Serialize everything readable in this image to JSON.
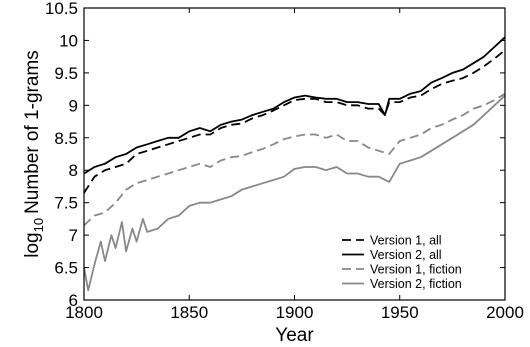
{
  "chart_data": {
    "type": "line",
    "title": "",
    "xlabel": "Year",
    "ylabel": "Number of 1-grams",
    "ylabel_prefix": "log",
    "ylabel_subscript": "10",
    "xlim": [
      1800,
      2000
    ],
    "ylim": [
      6,
      10.5
    ],
    "xticks": [
      "1800",
      "1850",
      "1900",
      "1950",
      "2000"
    ],
    "yticks": [
      "6",
      "6.5",
      "7",
      "7.5",
      "8",
      "8.5",
      "9",
      "9.5",
      "10",
      "10.5"
    ],
    "grid": false,
    "legend_position": "bottom-right",
    "series": [
      {
        "name": "Version 1, all",
        "color": "#000000",
        "dash": "dashed",
        "x": [
          1800,
          1805,
          1810,
          1815,
          1820,
          1825,
          1830,
          1835,
          1840,
          1845,
          1850,
          1855,
          1860,
          1865,
          1870,
          1875,
          1880,
          1885,
          1890,
          1895,
          1900,
          1905,
          1910,
          1915,
          1920,
          1925,
          1930,
          1935,
          1940,
          1943,
          1945,
          1950,
          1955,
          1960,
          1965,
          1970,
          1975,
          1980,
          1985,
          1990,
          1995,
          2000
        ],
        "y": [
          7.65,
          7.9,
          8.0,
          8.05,
          8.1,
          8.25,
          8.3,
          8.35,
          8.4,
          8.45,
          8.5,
          8.55,
          8.55,
          8.65,
          8.7,
          8.72,
          8.8,
          8.85,
          8.92,
          9.0,
          9.08,
          9.1,
          9.1,
          9.05,
          9.05,
          9.0,
          9.0,
          8.95,
          8.95,
          8.85,
          9.05,
          9.05,
          9.12,
          9.15,
          9.25,
          9.33,
          9.38,
          9.42,
          9.5,
          9.6,
          9.72,
          9.85
        ]
      },
      {
        "name": "Version 2, all",
        "color": "#000000",
        "dash": "solid",
        "x": [
          1800,
          1805,
          1810,
          1815,
          1820,
          1825,
          1830,
          1835,
          1840,
          1845,
          1850,
          1855,
          1860,
          1865,
          1870,
          1875,
          1880,
          1885,
          1890,
          1895,
          1900,
          1905,
          1910,
          1915,
          1920,
          1925,
          1930,
          1935,
          1940,
          1943,
          1945,
          1950,
          1955,
          1960,
          1965,
          1970,
          1975,
          1980,
          1985,
          1990,
          1995,
          2000
        ],
        "y": [
          7.95,
          8.05,
          8.1,
          8.2,
          8.25,
          8.35,
          8.4,
          8.45,
          8.5,
          8.5,
          8.6,
          8.65,
          8.6,
          8.7,
          8.75,
          8.78,
          8.85,
          8.9,
          8.95,
          9.05,
          9.12,
          9.15,
          9.12,
          9.1,
          9.1,
          9.05,
          9.05,
          9.02,
          9.02,
          8.85,
          9.1,
          9.1,
          9.18,
          9.22,
          9.35,
          9.42,
          9.5,
          9.55,
          9.65,
          9.75,
          9.9,
          10.05
        ]
      },
      {
        "name": "Version 1, fiction",
        "color": "#888888",
        "dash": "dashed",
        "x": [
          1800,
          1805,
          1810,
          1815,
          1820,
          1825,
          1830,
          1835,
          1840,
          1845,
          1850,
          1855,
          1860,
          1865,
          1870,
          1875,
          1880,
          1885,
          1890,
          1895,
          1900,
          1905,
          1910,
          1915,
          1920,
          1925,
          1930,
          1935,
          1940,
          1945,
          1950,
          1955,
          1960,
          1965,
          1970,
          1975,
          1980,
          1985,
          1990,
          1995,
          2000
        ],
        "y": [
          7.15,
          7.3,
          7.35,
          7.5,
          7.7,
          7.8,
          7.85,
          7.9,
          7.95,
          8.0,
          8.05,
          8.1,
          8.05,
          8.15,
          8.2,
          8.22,
          8.28,
          8.33,
          8.4,
          8.48,
          8.52,
          8.55,
          8.55,
          8.5,
          8.55,
          8.45,
          8.45,
          8.35,
          8.3,
          8.25,
          8.45,
          8.5,
          8.55,
          8.65,
          8.7,
          8.78,
          8.85,
          8.95,
          9.0,
          9.08,
          9.18
        ]
      },
      {
        "name": "Version 2, fiction",
        "color": "#888888",
        "dash": "solid",
        "x": [
          1800,
          1802,
          1805,
          1808,
          1810,
          1813,
          1815,
          1818,
          1820,
          1823,
          1825,
          1828,
          1830,
          1835,
          1840,
          1845,
          1850,
          1855,
          1860,
          1865,
          1870,
          1875,
          1880,
          1885,
          1890,
          1895,
          1900,
          1905,
          1910,
          1915,
          1920,
          1925,
          1930,
          1935,
          1940,
          1945,
          1950,
          1955,
          1960,
          1965,
          1970,
          1975,
          1980,
          1985,
          1990,
          1995,
          2000
        ],
        "y": [
          6.5,
          6.15,
          6.55,
          6.9,
          6.6,
          7.0,
          6.8,
          7.2,
          6.75,
          7.1,
          6.9,
          7.25,
          7.05,
          7.1,
          7.25,
          7.3,
          7.45,
          7.5,
          7.5,
          7.55,
          7.6,
          7.7,
          7.75,
          7.8,
          7.85,
          7.9,
          8.02,
          8.05,
          8.05,
          8.0,
          8.05,
          7.95,
          7.95,
          7.9,
          7.9,
          7.82,
          8.1,
          8.15,
          8.2,
          8.3,
          8.4,
          8.5,
          8.6,
          8.7,
          8.85,
          9.0,
          9.15
        ]
      }
    ]
  }
}
